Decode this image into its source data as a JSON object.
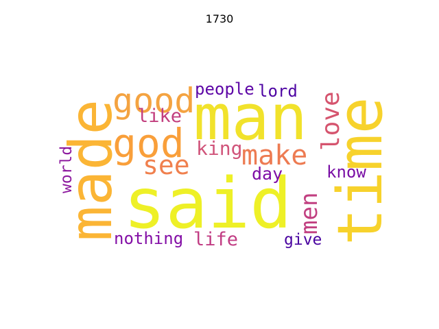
{
  "title": "1730",
  "words": [
    {
      "text": "said",
      "color": "#eef027"
    },
    {
      "text": "man",
      "color": "#f1e22b"
    },
    {
      "text": "time",
      "color": "#f7d22c"
    },
    {
      "text": "made",
      "color": "#fbb535"
    },
    {
      "text": "god",
      "color": "#f99f3a"
    },
    {
      "text": "good",
      "color": "#f4a341"
    },
    {
      "text": "make",
      "color": "#ed7b52"
    },
    {
      "text": "see",
      "color": "#f0804e"
    },
    {
      "text": "love",
      "color": "#d5546e"
    },
    {
      "text": "men",
      "color": "#c13f80"
    },
    {
      "text": "king",
      "color": "#d0547a"
    },
    {
      "text": "like",
      "color": "#c23e7e"
    },
    {
      "text": "life",
      "color": "#c13c83"
    },
    {
      "text": "people",
      "color": "#5d06a6"
    },
    {
      "text": "lord",
      "color": "#4e05a3"
    },
    {
      "text": "day",
      "color": "#7e0da5"
    },
    {
      "text": "know",
      "color": "#790fa5"
    },
    {
      "text": "nothing",
      "color": "#830fa6"
    },
    {
      "text": "world",
      "color": "#8d1a9f"
    },
    {
      "text": "give",
      "color": "#4903a0"
    }
  ]
}
